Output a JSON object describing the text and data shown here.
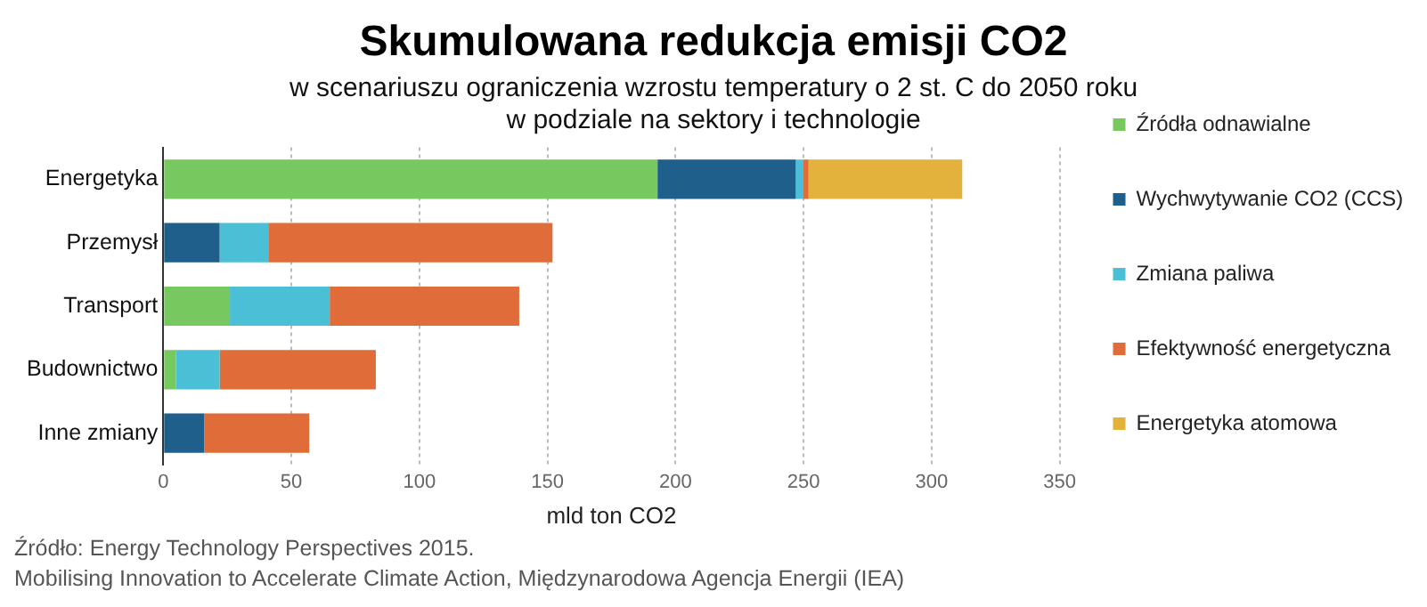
{
  "chart_data": {
    "type": "bar",
    "orientation": "horizontal",
    "stacked": true,
    "title": "Skumulowana redukcja emisji CO2",
    "subtitle": "w scenariuszu ograniczenia wzrostu temperatury o 2 st. C do 2050 roku\nw podziale na sektory i technologie",
    "xlabel": "mld ton CO2",
    "categories": [
      "Energetyka",
      "Przemysł",
      "Transport",
      "Budownictwo",
      "Inne zmiany"
    ],
    "series": [
      {
        "name": "Źródła odnawialne",
        "color": "#77c95f",
        "values": [
          193,
          null,
          26,
          5,
          null
        ]
      },
      {
        "name": "Wychwytywanie CO2 (CCS)",
        "color": "#1f5f8b",
        "values": [
          54,
          22,
          null,
          null,
          16
        ]
      },
      {
        "name": "Zmiana paliwa",
        "color": "#4bbfd6",
        "values": [
          3,
          19,
          39,
          17,
          null
        ]
      },
      {
        "name": "Efektywność energetyczna",
        "color": "#e06c3a",
        "values": [
          2,
          111,
          74,
          61,
          41
        ]
      },
      {
        "name": "Energetyka atomowa",
        "color": "#e3b23c",
        "values": [
          60,
          null,
          null,
          null,
          null
        ]
      }
    ],
    "xlim": [
      0,
      350
    ],
    "xticks": [
      0,
      50,
      100,
      150,
      200,
      250,
      300,
      350
    ],
    "grid": "x",
    "legend": "right",
    "annotations": [
      "Źródło: Energy Technology Perspectives 2015.",
      "Mobilising Innovation to Accelerate Climate Action, Międzynarodowa Agencja Energii (IEA)"
    ]
  }
}
